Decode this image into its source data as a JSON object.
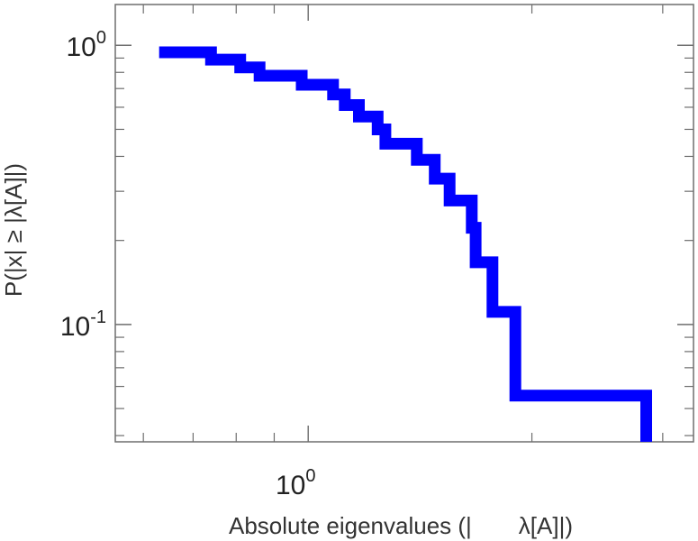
{
  "chart_data": {
    "type": "line",
    "style": "step",
    "xscale": "log",
    "yscale": "log",
    "xlim": [
      0.55,
      3.3
    ],
    "ylim": [
      0.038,
      1.4
    ],
    "grid": false,
    "color": "#0000ff",
    "xlabel": "Absolute eigenvalues (|    λ[A]|)",
    "ylabel": "P(|x| ≥ |λ[A]|)",
    "x_ticks": [
      {
        "value": 1.0,
        "base": "10",
        "exponent": "0"
      }
    ],
    "y_ticks": [
      {
        "value": 1.0,
        "base": "10",
        "exponent": "0"
      },
      {
        "value": 0.1,
        "base": "10",
        "exponent": "-1"
      }
    ],
    "series": [
      {
        "points": [
          [
            0.63,
            0.944
          ],
          [
            0.74,
            0.944
          ],
          [
            0.74,
            0.889
          ],
          [
            0.81,
            0.889
          ],
          [
            0.81,
            0.833
          ],
          [
            0.86,
            0.833
          ],
          [
            0.86,
            0.778
          ],
          [
            0.98,
            0.778
          ],
          [
            0.98,
            0.722
          ],
          [
            1.08,
            0.722
          ],
          [
            1.08,
            0.667
          ],
          [
            1.12,
            0.667
          ],
          [
            1.12,
            0.611
          ],
          [
            1.17,
            0.611
          ],
          [
            1.17,
            0.556
          ],
          [
            1.24,
            0.556
          ],
          [
            1.24,
            0.5
          ],
          [
            1.27,
            0.5
          ],
          [
            1.27,
            0.444
          ],
          [
            1.4,
            0.444
          ],
          [
            1.4,
            0.389
          ],
          [
            1.48,
            0.389
          ],
          [
            1.48,
            0.333
          ],
          [
            1.55,
            0.333
          ],
          [
            1.55,
            0.278
          ],
          [
            1.66,
            0.278
          ],
          [
            1.66,
            0.222
          ],
          [
            1.68,
            0.222
          ],
          [
            1.68,
            0.167
          ],
          [
            1.77,
            0.167
          ],
          [
            1.77,
            0.111
          ],
          [
            1.9,
            0.111
          ],
          [
            1.9,
            0.0556
          ],
          [
            2.85,
            0.0556
          ],
          [
            2.85,
            0.038
          ]
        ]
      }
    ]
  }
}
